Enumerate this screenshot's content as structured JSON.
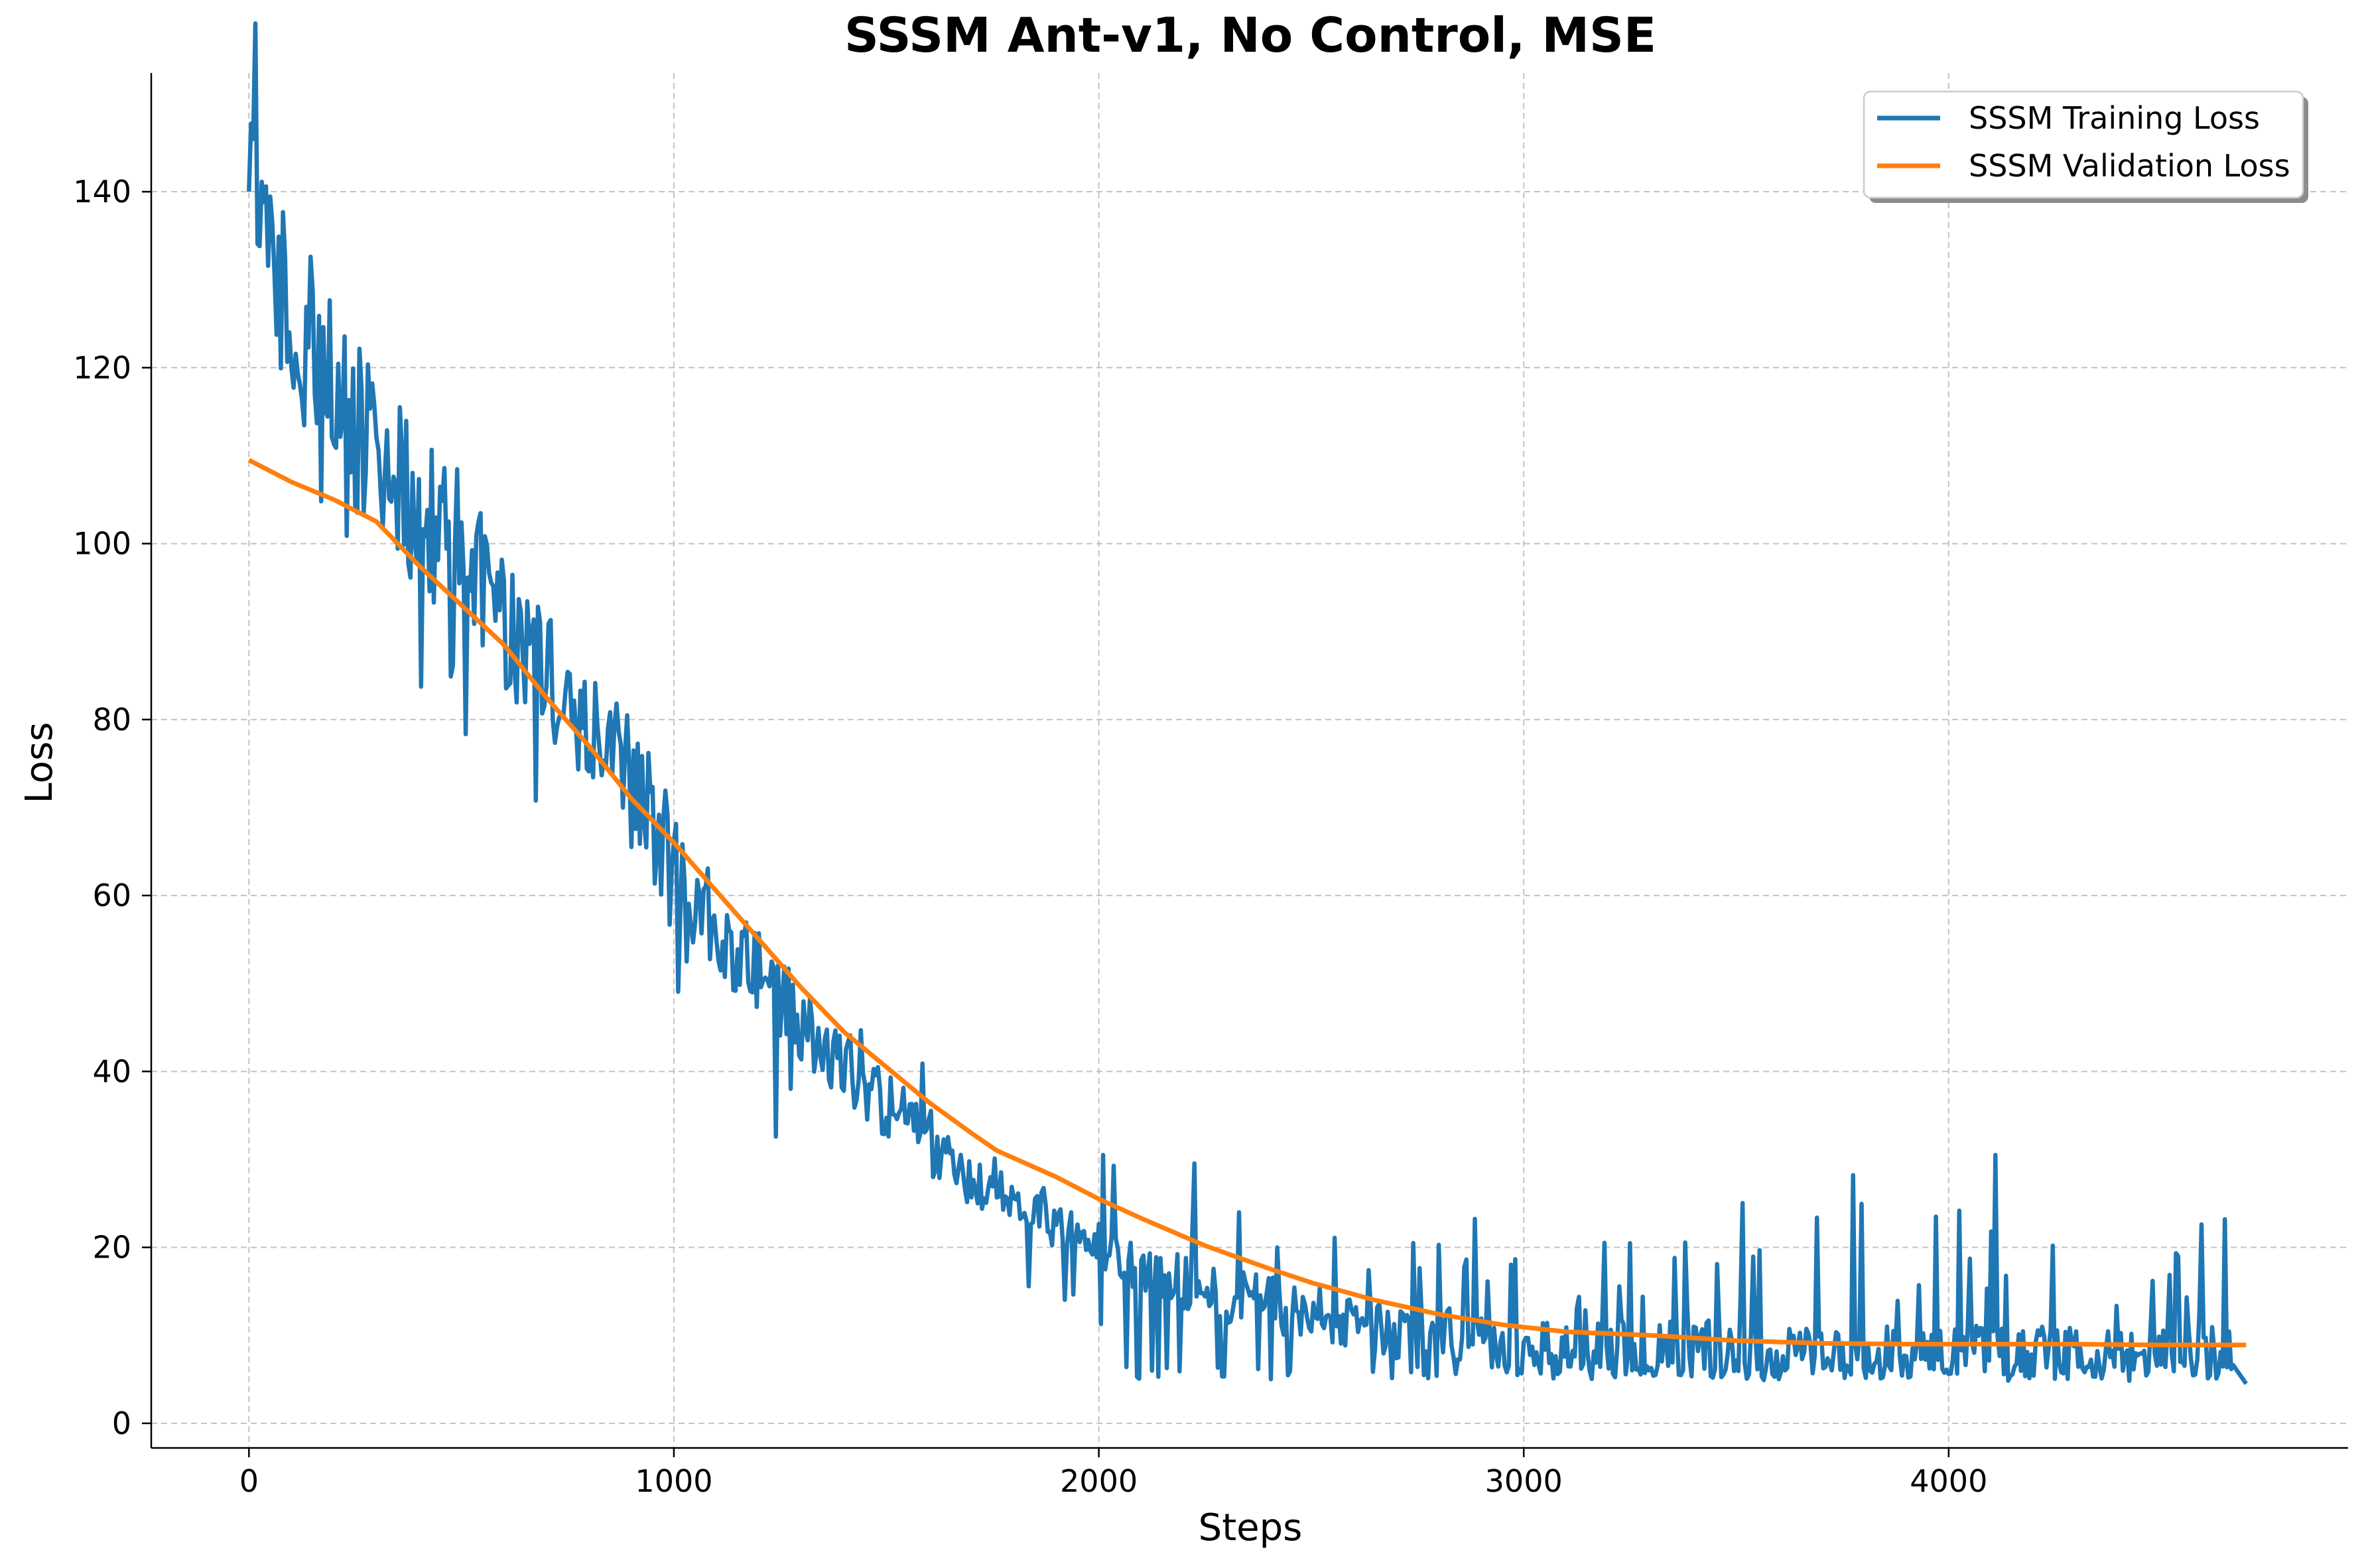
{
  "chart_data": {
    "type": "line",
    "title": "SSSM Ant-v1, No Control, MSE",
    "xlabel": "Steps",
    "ylabel": "Loss",
    "xlim": [
      -230,
      4940
    ],
    "ylim": [
      -2.8,
      153.5
    ],
    "xticks": [
      0,
      1000,
      2000,
      3000,
      4000
    ],
    "xtick_labels": [
      "0",
      "1000",
      "2000",
      "3000",
      "4000"
    ],
    "yticks": [
      0,
      20,
      40,
      60,
      80,
      100,
      120,
      140
    ],
    "ytick_labels": [
      "0",
      "20",
      "40",
      "60",
      "80",
      "100",
      "120",
      "140"
    ],
    "grid": true,
    "legend_position": "top-right",
    "colors": {
      "training": "#1f77b4",
      "validation": "#ff7f0e"
    },
    "series": [
      {
        "name": "SSSM Training Loss",
        "color": "#1f77b4",
        "x": [
          0,
          50,
          100,
          150,
          200,
          250,
          300,
          350,
          400,
          450,
          500,
          550,
          600,
          650,
          700,
          750,
          800,
          850,
          900,
          950,
          1000,
          1050,
          1100,
          1150,
          1200,
          1250,
          1300,
          1350,
          1400,
          1450,
          1500,
          1550,
          1600,
          1650,
          1700,
          1750,
          1800,
          1850,
          1900,
          1950,
          2000,
          2050,
          2100,
          2150,
          2200,
          2250,
          2300,
          2350,
          2400,
          2450,
          2500,
          2550,
          2600,
          2650,
          2700,
          2750,
          2800,
          2850,
          2900,
          2950,
          3000,
          3050,
          3100,
          3150,
          3200,
          3250,
          3300,
          3350,
          3400,
          3450,
          3500,
          3550,
          3600,
          3650,
          3700,
          3750,
          3800,
          3850,
          3900,
          3950,
          4000,
          4050,
          4100,
          4150,
          4200,
          4250,
          4300,
          4350,
          4400,
          4450,
          4500,
          4550,
          4600,
          4650,
          4700
        ],
        "y": [
          140,
          132,
          125,
          122,
          117,
          113,
          110,
          107,
          104,
          101,
          98,
          95,
          92,
          89,
          86,
          83,
          80,
          76,
          72,
          68,
          64,
          60,
          57,
          54,
          51,
          48,
          46,
          43,
          41,
          38,
          36,
          34,
          32,
          30,
          28,
          27,
          25.5,
          24,
          23,
          22,
          21,
          19.5,
          18,
          17,
          16,
          15,
          14.5,
          14,
          13.5,
          13,
          12.5,
          12,
          11.5,
          11,
          10.5,
          10.2,
          10,
          9.8,
          9.6,
          9.4,
          9.2,
          9.0,
          8.9,
          8.8,
          8.7,
          8.6,
          8.5,
          8.4,
          8.3,
          8.2,
          8.1,
          8.1,
          8.0,
          8.0,
          8.0,
          8.0,
          8.0,
          8.0,
          8.0,
          8.0,
          8.0,
          8.0,
          8.0,
          8.0,
          8.0,
          8.0,
          8.0,
          8.0,
          8.0,
          8.0,
          8.0,
          8.0,
          8.0,
          8.0,
          4.5
        ]
      },
      {
        "name": "SSSM Validation Loss",
        "color": "#ff7f0e",
        "x": [
          0,
          100,
          200,
          300,
          400,
          500,
          600,
          700,
          800,
          900,
          1000,
          1100,
          1200,
          1300,
          1400,
          1500,
          1600,
          1700,
          1760,
          1900,
          2000,
          2100,
          2250,
          2400,
          2500,
          2650,
          2800,
          2950,
          3100,
          3300,
          3500,
          3700,
          3900,
          4100,
          4300,
          4500,
          4700
        ],
        "y": [
          109.5,
          107,
          105,
          102.5,
          97.5,
          93,
          88.5,
          82.5,
          77,
          71,
          66,
          60.5,
          55,
          49.5,
          44.5,
          40.5,
          36.5,
          33,
          31,
          28,
          25.5,
          23.3,
          20.2,
          17.6,
          16,
          14,
          12.4,
          11.2,
          10.4,
          10,
          9.4,
          9.1,
          9.0,
          9.0,
          9.0,
          8.9,
          8.9
        ]
      }
    ]
  }
}
